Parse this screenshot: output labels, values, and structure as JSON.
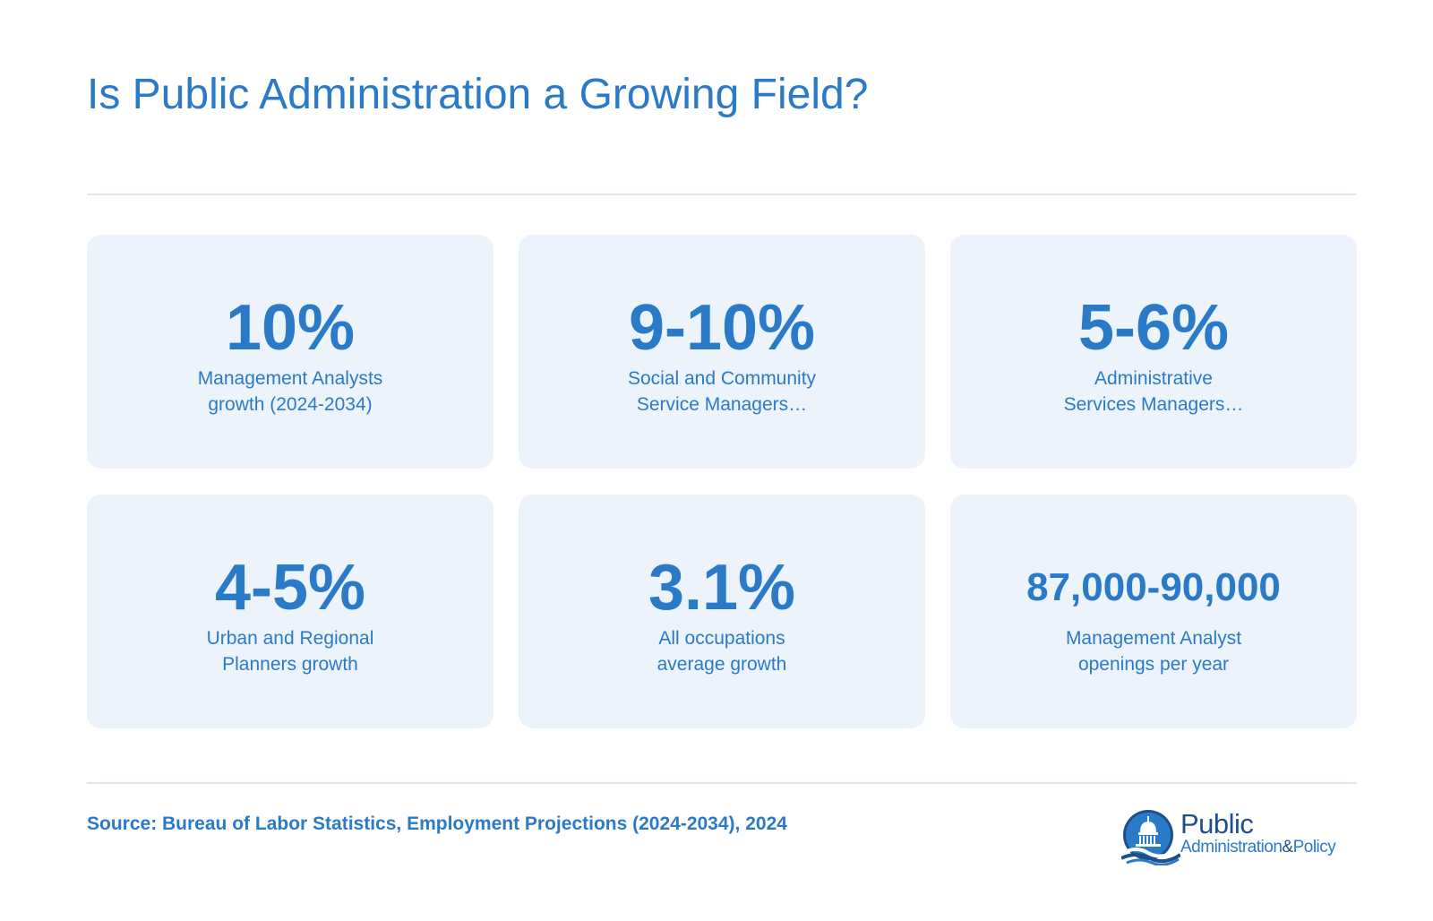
{
  "title": "Is Public Administration a Growing Field?",
  "stats": [
    {
      "value": "10%",
      "label": "Management Analysts\ngrowth (2024-2034)"
    },
    {
      "value": "9-10%",
      "label": "Social and Community\nService Managers…"
    },
    {
      "value": "5-6%",
      "label": "Administrative\nServices Managers…"
    },
    {
      "value": "4-5%",
      "label": "Urban and Regional\nPlanners growth"
    },
    {
      "value": "3.1%",
      "label": "All occupations\naverage growth"
    },
    {
      "value": "87,000-90,000",
      "label": "Management Analyst\nopenings per year"
    }
  ],
  "source": "Source: Bureau of Labor Statistics, Employment Projections (2024-2034), 2024",
  "logo": {
    "line1": "Public",
    "line2_a": "Administration",
    "line2_amp": "&",
    "line2_b": "Policy",
    "icon": "capitol-dome-icon"
  },
  "colors": {
    "accent": "#2a7ac8",
    "card_bg": "#ecf3fb",
    "divider": "#dce8f4",
    "logo_dark": "#1d4f8a"
  }
}
